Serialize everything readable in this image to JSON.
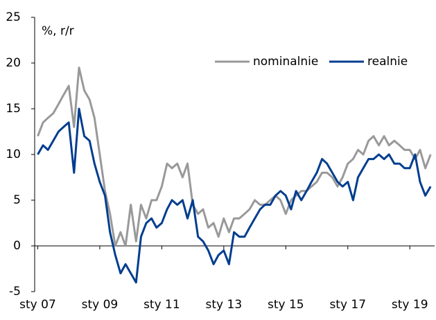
{
  "chart_data": {
    "type": "line",
    "annotation": "%, r/r",
    "x": [
      2007.0,
      2007.17,
      2007.33,
      2007.5,
      2007.67,
      2007.83,
      2008.0,
      2008.17,
      2008.33,
      2008.5,
      2008.67,
      2008.83,
      2009.0,
      2009.17,
      2009.33,
      2009.5,
      2009.67,
      2009.83,
      2010.0,
      2010.17,
      2010.33,
      2010.5,
      2010.67,
      2010.83,
      2011.0,
      2011.17,
      2011.33,
      2011.5,
      2011.67,
      2011.83,
      2012.0,
      2012.17,
      2012.33,
      2012.5,
      2012.67,
      2012.83,
      2013.0,
      2013.17,
      2013.33,
      2013.5,
      2013.67,
      2013.83,
      2014.0,
      2014.17,
      2014.33,
      2014.5,
      2014.67,
      2014.83,
      2015.0,
      2015.17,
      2015.33,
      2015.5,
      2015.67,
      2015.83,
      2016.0,
      2016.17,
      2016.33,
      2016.5,
      2016.67,
      2016.83,
      2017.0,
      2017.17,
      2017.33,
      2017.5,
      2017.67,
      2017.83,
      2018.0,
      2018.17,
      2018.33,
      2018.5,
      2018.67,
      2018.83,
      2019.0,
      2019.17,
      2019.33,
      2019.5,
      2019.67
    ],
    "series": [
      {
        "name": "nominalnie",
        "color": "#999999",
        "values": [
          12,
          13.5,
          14,
          14.5,
          15.5,
          16.5,
          17.5,
          13,
          19.5,
          17,
          16,
          14,
          10,
          6,
          3.5,
          0,
          1.5,
          0,
          4.5,
          0.5,
          4.5,
          3,
          5,
          5,
          6.5,
          9,
          8.5,
          9,
          7.5,
          9,
          4.5,
          3.5,
          4,
          2,
          2.5,
          1,
          3,
          1.5,
          3,
          3,
          3.5,
          4,
          5,
          4.5,
          4.5,
          5,
          5.5,
          5,
          3.5,
          5,
          5.5,
          6,
          6,
          6.5,
          7,
          8,
          8,
          7.5,
          6.5,
          7.5,
          9,
          9.5,
          10.5,
          10,
          11.5,
          12,
          11,
          12,
          11,
          11.5,
          11,
          10.5,
          10.5,
          9.5,
          10.5,
          8.5,
          10
        ]
      },
      {
        "name": "realnie",
        "color": "#003d8f",
        "values": [
          10,
          11,
          10.5,
          11.5,
          12.5,
          13,
          13.5,
          8,
          15,
          12,
          11.5,
          9,
          7,
          5.5,
          1.5,
          -1,
          -3,
          -2,
          -3,
          -4,
          1,
          2.5,
          3,
          2,
          2.5,
          4,
          5,
          4.5,
          5,
          3,
          5,
          1,
          0.5,
          -0.5,
          -2,
          -1,
          -0.5,
          -2,
          1.5,
          1,
          1,
          2,
          3,
          4,
          4.5,
          4.5,
          5.5,
          6,
          5.5,
          4,
          6,
          5,
          6,
          7,
          8,
          9.5,
          9,
          8,
          7,
          6.5,
          7,
          5,
          7.5,
          8.5,
          9.5,
          9.5,
          10,
          9.5,
          10,
          9,
          9,
          8.5,
          8.5,
          10,
          7,
          5.5,
          6.5
        ]
      }
    ],
    "xlim": [
      2006.9,
      2019.8
    ],
    "xticks": [
      {
        "value": 2007,
        "label": "sty 07"
      },
      {
        "value": 2009,
        "label": "sty 09"
      },
      {
        "value": 2011,
        "label": "sty 11"
      },
      {
        "value": 2013,
        "label": "sty 13"
      },
      {
        "value": 2015,
        "label": "sty 15"
      },
      {
        "value": 2017,
        "label": "sty 17"
      },
      {
        "value": 2019,
        "label": "sty 19"
      }
    ],
    "ylim": [
      -5,
      25
    ],
    "yticks": [
      -5,
      0,
      5,
      10,
      15,
      20,
      25
    ],
    "legend": "upper right"
  }
}
